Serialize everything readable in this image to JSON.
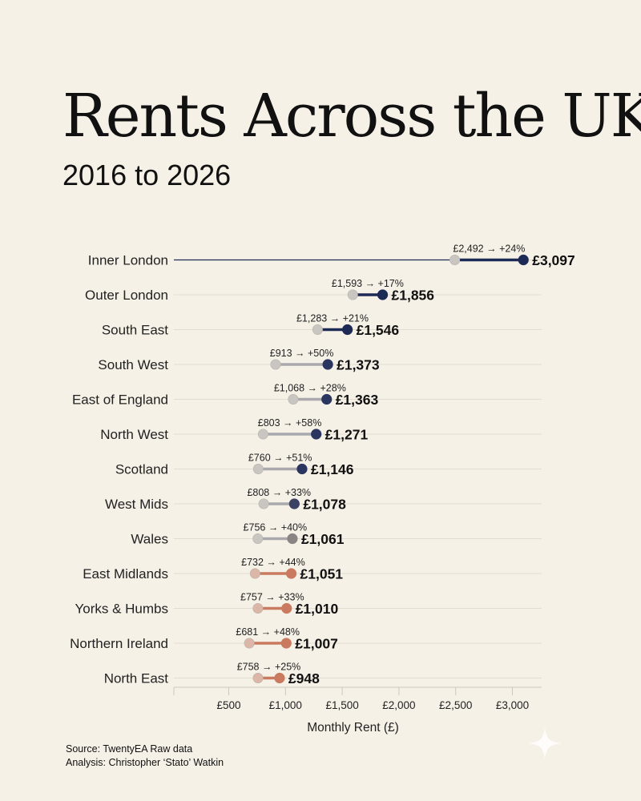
{
  "header": {
    "title": "Rents Across the UK",
    "subtitle": "2016 to 2026"
  },
  "footer": {
    "source": "Source: TwentyEA Raw data",
    "analysis": "Analysis: Christopher ‘Stato’ Watkin"
  },
  "colors": {
    "background": "#f6f1e7",
    "start_dot": "#c9c6c2",
    "navy": "#1d2a55",
    "grey_end": "#8a8483",
    "terracotta": "#c97a5f",
    "start_dot_warm": "#dcb6a6",
    "gridline": "#e2dcd1"
  },
  "chart_data": {
    "type": "dumbbell",
    "xlabel": "Monthly Rent (£)",
    "xlim": [
      0,
      3150
    ],
    "xticks": [
      500,
      1000,
      1500,
      2000,
      2500,
      3000
    ],
    "xtick_labels": [
      "£500",
      "£1,000",
      "£1,500",
      "£2,000",
      "£2,500",
      "£3,000"
    ],
    "rows": [
      {
        "region": "Inner London",
        "start": 2492,
        "end": 3097,
        "start_label": "£2,492",
        "change": "+24%",
        "end_label": "£3,097",
        "color": "navy"
      },
      {
        "region": "Outer London",
        "start": 1593,
        "end": 1856,
        "start_label": "£1,593",
        "change": "+17%",
        "end_label": "£1,856",
        "color": "navy"
      },
      {
        "region": "South East",
        "start": 1283,
        "end": 1546,
        "start_label": "£1,283",
        "change": "+21%",
        "end_label": "£1,546",
        "color": "navy"
      },
      {
        "region": "South West",
        "start": 913,
        "end": 1373,
        "start_label": "£913",
        "change": "+50%",
        "end_label": "£1,373",
        "color": "navy_soft"
      },
      {
        "region": "East of England",
        "start": 1068,
        "end": 1363,
        "start_label": "£1,068",
        "change": "+28%",
        "end_label": "£1,363",
        "color": "navy_soft"
      },
      {
        "region": "North West",
        "start": 803,
        "end": 1271,
        "start_label": "£803",
        "change": "+58%",
        "end_label": "£1,271",
        "color": "navy_soft"
      },
      {
        "region": "Scotland",
        "start": 760,
        "end": 1146,
        "start_label": "£760",
        "change": "+51%",
        "end_label": "£1,146",
        "color": "navy_soft"
      },
      {
        "region": "West Mids",
        "start": 808,
        "end": 1078,
        "start_label": "£808",
        "change": "+33%",
        "end_label": "£1,078",
        "color": "slate"
      },
      {
        "region": "Wales",
        "start": 756,
        "end": 1061,
        "start_label": "£756",
        "change": "+40%",
        "end_label": "£1,061",
        "color": "grey"
      },
      {
        "region": "East Midlands",
        "start": 732,
        "end": 1051,
        "start_label": "£732",
        "change": "+44%",
        "end_label": "£1,051",
        "color": "terracotta"
      },
      {
        "region": "Yorks & Humbs",
        "start": 757,
        "end": 1010,
        "start_label": "£757",
        "change": "+33%",
        "end_label": "£1,010",
        "color": "terracotta"
      },
      {
        "region": "Northern Ireland",
        "start": 681,
        "end": 1007,
        "start_label": "£681",
        "change": "+48%",
        "end_label": "£1,007",
        "color": "terracotta"
      },
      {
        "region": "North East",
        "start": 758,
        "end": 948,
        "start_label": "£758",
        "change": "+25%",
        "end_label": "£948",
        "color": "terracotta"
      }
    ]
  }
}
